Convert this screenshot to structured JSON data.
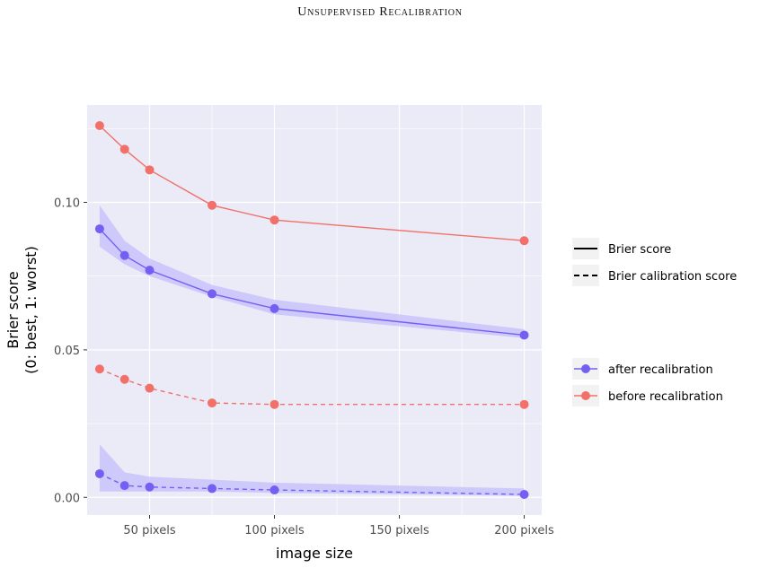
{
  "page_header": "Unsupervised Recalibration",
  "colors": {
    "after": "#7360f2",
    "after_band": "#c9c3fb",
    "before": "#f2706a",
    "panel": "#ebebf7",
    "grid": "#ffffff"
  },
  "chart_data": {
    "type": "line",
    "xlabel": "image size",
    "ylabel_line1": "Brier score",
    "ylabel_line2": "(0: best, 1: worst)",
    "xlim": [
      25,
      207
    ],
    "ylim": [
      -0.006,
      0.133
    ],
    "x_ticks": [
      {
        "value": 50,
        "label": "50 pixels"
      },
      {
        "value": 100,
        "label": "100 pixels"
      },
      {
        "value": 150,
        "label": "150 pixels"
      },
      {
        "value": 200,
        "label": "200 pixels"
      }
    ],
    "y_ticks": [
      {
        "value": 0.0,
        "label": "0.00"
      },
      {
        "value": 0.05,
        "label": "0.05"
      },
      {
        "value": 0.1,
        "label": "0.10"
      }
    ],
    "x": [
      30,
      40,
      50,
      75,
      100,
      200
    ],
    "series": [
      {
        "metric": "brier",
        "group": "before",
        "values": [
          0.126,
          0.118,
          0.111,
          0.099,
          0.094,
          0.087
        ]
      },
      {
        "metric": "brier",
        "group": "after",
        "values": [
          0.091,
          0.082,
          0.077,
          0.069,
          0.064,
          0.055
        ],
        "lower": [
          0.085,
          0.079,
          0.075,
          0.068,
          0.062,
          0.054
        ],
        "upper": [
          0.099,
          0.087,
          0.081,
          0.072,
          0.067,
          0.057
        ]
      },
      {
        "metric": "calibration",
        "group": "before",
        "values": [
          0.0435,
          0.04,
          0.037,
          0.032,
          0.0315,
          0.0315
        ]
      },
      {
        "metric": "calibration",
        "group": "after",
        "values": [
          0.008,
          0.004,
          0.0035,
          0.003,
          0.0025,
          0.001
        ],
        "lower": [
          0.002,
          0.002,
          0.002,
          0.002,
          0.0015,
          0.0005
        ],
        "upper": [
          0.018,
          0.0085,
          0.007,
          0.006,
          0.005,
          0.003
        ]
      }
    ],
    "legend_linetype": [
      {
        "label": "Brier score",
        "style": "solid"
      },
      {
        "label": "Brier calibration score",
        "style": "dashed"
      }
    ],
    "legend_color": [
      {
        "label": "after recalibration",
        "group": "after"
      },
      {
        "label": "before recalibration",
        "group": "before"
      }
    ],
    "legend_placement": "right",
    "grid": true
  }
}
